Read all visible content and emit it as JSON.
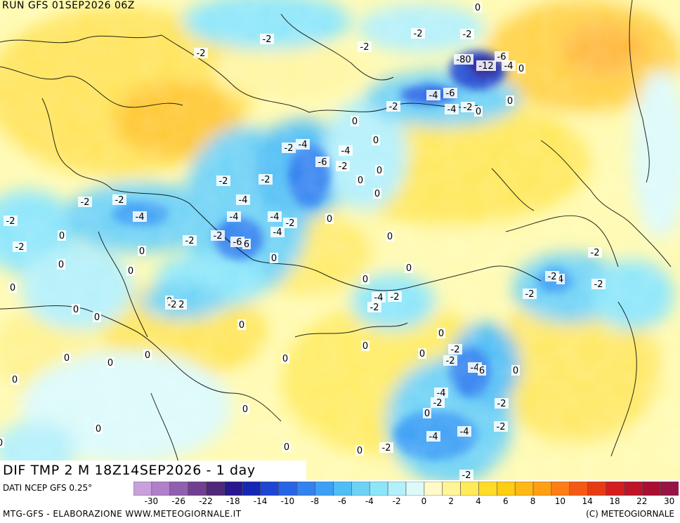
{
  "header": {
    "run_label": "RUN GFS 01SEP2026 06Z"
  },
  "caption": {
    "title": "DIF TMP 2 M 18Z14SEP2026 - 1 day"
  },
  "footer": {
    "source": "DATI NCEP GFS 0.25°",
    "credit": "MTG-GFS - ELABORAZIONE WWW.METEOGIORNALE.IT",
    "copyright": "(C) METEOGIORNALE"
  },
  "legend": {
    "colors": [
      "#c8a0dc",
      "#b080c8",
      "#9060b0",
      "#704090",
      "#502878",
      "#281890",
      "#1428b4",
      "#1e46d2",
      "#2864e6",
      "#3282f0",
      "#3ca0f5",
      "#50bef5",
      "#6ed2f5",
      "#8ce6fa",
      "#b4f0fa",
      "#dcfafa",
      "#fffac8",
      "#fff596",
      "#ffeb5a",
      "#ffdc28",
      "#ffcd14",
      "#ffb914",
      "#ffa014",
      "#ff7d14",
      "#f55a14",
      "#e63c14",
      "#d21e1e",
      "#be1428",
      "#aa0f32",
      "#961446"
    ],
    "tick_labels": [
      "-30",
      "-26",
      "-22",
      "-18",
      "-14",
      "-10",
      "-8",
      "-6",
      "-4",
      "-2",
      "0",
      "2",
      "4",
      "6",
      "8",
      "10",
      "14",
      "18",
      "22",
      "30"
    ]
  },
  "map_labels": [
    {
      "text": "0"
    },
    {
      "text": "-2"
    },
    {
      "text": "-2"
    },
    {
      "text": "-2"
    },
    {
      "text": "-2"
    },
    {
      "text": "-80"
    },
    {
      "text": "-12"
    },
    {
      "text": "-6"
    },
    {
      "text": "-4"
    },
    {
      "text": "0"
    },
    {
      "text": "-4"
    },
    {
      "text": "-6"
    },
    {
      "text": "-4"
    },
    {
      "text": "-2"
    },
    {
      "text": "0"
    },
    {
      "text": "0"
    },
    {
      "text": "-2"
    },
    {
      "text": "-2"
    },
    {
      "text": "0"
    },
    {
      "text": "-2"
    },
    {
      "text": "-4"
    },
    {
      "text": "-4"
    },
    {
      "text": "-6"
    },
    {
      "text": "-2"
    },
    {
      "text": "0"
    },
    {
      "text": "0"
    },
    {
      "text": "0"
    },
    {
      "text": "0"
    },
    {
      "text": "-2"
    },
    {
      "text": "-2"
    },
    {
      "text": "-4"
    },
    {
      "text": "-2"
    },
    {
      "text": "-2"
    },
    {
      "text": "-4"
    },
    {
      "text": "-4"
    },
    {
      "text": "-4"
    },
    {
      "text": "-2"
    },
    {
      "text": "-2"
    },
    {
      "text": "-4"
    },
    {
      "text": "0"
    },
    {
      "text": "-2"
    },
    {
      "text": "0"
    },
    {
      "text": "-2"
    },
    {
      "text": "-2"
    },
    {
      "text": "-6"
    },
    {
      "text": "6"
    },
    {
      "text": "0"
    },
    {
      "text": "0"
    },
    {
      "text": "0"
    },
    {
      "text": "0"
    },
    {
      "text": "0"
    },
    {
      "text": "-2"
    },
    {
      "text": "4"
    },
    {
      "text": "-2"
    },
    {
      "text": "-2"
    },
    {
      "text": "-4"
    },
    {
      "text": "-2"
    },
    {
      "text": "-2"
    },
    {
      "text": "0"
    },
    {
      "text": "-2"
    },
    {
      "text": "0"
    },
    {
      "text": "0"
    },
    {
      "text": "0"
    },
    {
      "text": "0"
    },
    {
      "text": "0"
    },
    {
      "text": "0"
    },
    {
      "text": "-2"
    },
    {
      "text": "0"
    },
    {
      "text": "-2"
    },
    {
      "text": "-4"
    },
    {
      "text": "6"
    },
    {
      "text": "0"
    },
    {
      "text": "0"
    },
    {
      "text": "0"
    },
    {
      "text": "0"
    },
    {
      "text": "0"
    },
    {
      "text": "0"
    },
    {
      "text": "-4"
    },
    {
      "text": "-2"
    },
    {
      "text": "-2"
    },
    {
      "text": "0"
    },
    {
      "text": "0"
    },
    {
      "text": "-2"
    },
    {
      "text": "0"
    },
    {
      "text": "0"
    },
    {
      "text": "-4"
    },
    {
      "text": "-4"
    },
    {
      "text": "0"
    },
    {
      "text": "-2"
    },
    {
      "text": "0"
    },
    {
      "text": "-2"
    },
    {
      "text": "-2"
    },
    {
      "text": "0"
    },
    {
      "text": "0"
    },
    {
      "text": "-2"
    }
  ]
}
